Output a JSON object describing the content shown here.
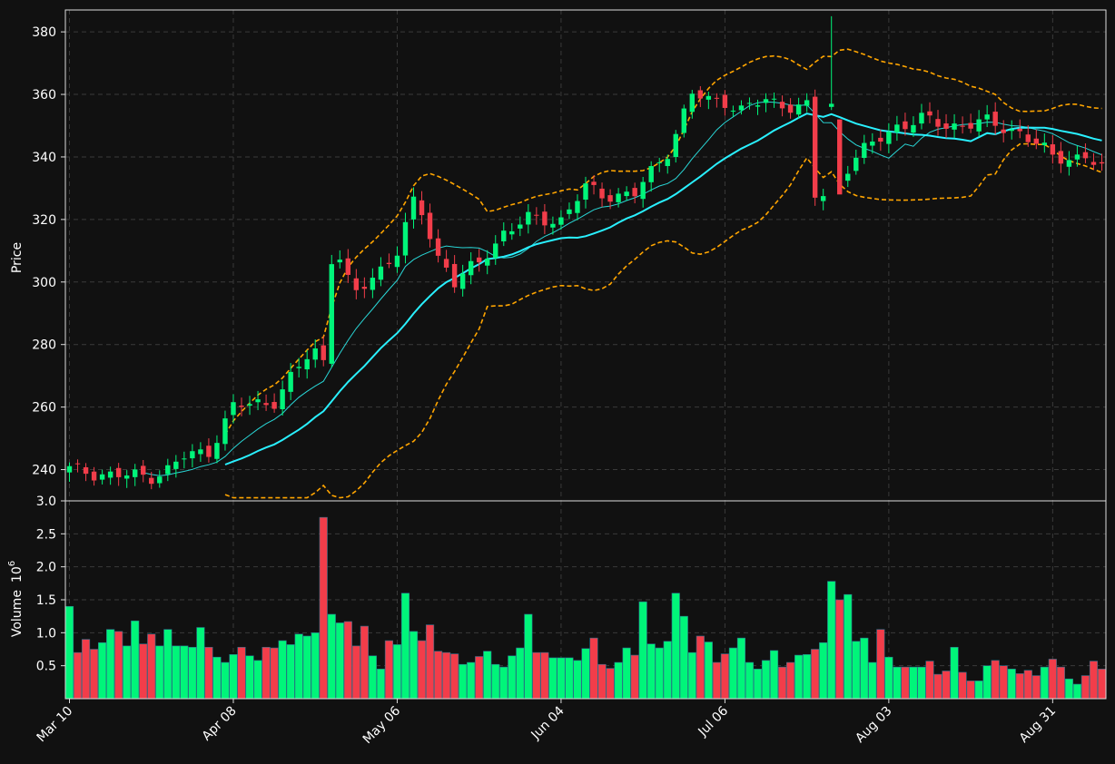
{
  "chart_data": {
    "type": "candlestick",
    "colors": {
      "background": "#111111",
      "up": "#00f57a",
      "down": "#f23d4a",
      "ma_slow": "#29f0ff",
      "ma_fast": "#29d6d6",
      "bands": "#ffa500",
      "grid": "#3a3a3a",
      "frame": "#dddddd",
      "text": "#ffffff"
    },
    "x_ticks": [
      "Mar 10",
      "Apr 08",
      "May 06",
      "Jun 04",
      "Jul 06",
      "Aug 03",
      "Aug 31"
    ],
    "x_tick_index": [
      0,
      20,
      40,
      60,
      80,
      100,
      120
    ],
    "n_bars": 127,
    "price_axis": {
      "label": "Price",
      "ylim": [
        230,
        387
      ],
      "ticks": [
        "240",
        "260",
        "280",
        "300",
        "320",
        "340",
        "360",
        "380"
      ]
    },
    "volume_axis": {
      "label": "Volume",
      "exponent": "6",
      "ylim": [
        0,
        3.0
      ],
      "ticks": [
        "0.5",
        "1.0",
        "1.5",
        "2.0",
        "2.5",
        "3.0"
      ]
    },
    "anchors": [
      [
        0,
        240
      ],
      [
        6,
        238
      ],
      [
        10,
        238
      ],
      [
        12,
        240
      ],
      [
        14,
        244
      ],
      [
        17,
        246
      ],
      [
        20,
        260
      ],
      [
        25,
        262
      ],
      [
        29,
        276
      ],
      [
        30,
        278
      ],
      [
        31,
        275
      ],
      [
        32,
        308
      ],
      [
        33,
        308
      ],
      [
        34,
        300
      ],
      [
        35,
        296
      ],
      [
        40,
        310
      ],
      [
        42,
        325
      ],
      [
        43,
        322
      ],
      [
        45,
        308
      ],
      [
        46,
        305
      ],
      [
        47,
        300
      ],
      [
        50,
        306
      ],
      [
        53,
        316
      ],
      [
        56,
        320
      ],
      [
        60,
        320
      ],
      [
        63,
        330
      ],
      [
        65,
        328
      ],
      [
        69,
        328
      ],
      [
        73,
        342
      ],
      [
        76,
        360
      ],
      [
        78,
        358
      ],
      [
        80,
        358
      ],
      [
        82,
        355
      ],
      [
        85,
        358
      ],
      [
        89,
        356
      ],
      [
        90,
        356
      ],
      [
        91,
        327
      ],
      [
        92,
        328
      ],
      [
        96,
        340
      ],
      [
        101,
        350
      ],
      [
        104,
        352
      ],
      [
        107,
        350
      ],
      [
        112,
        351
      ],
      [
        116,
        348
      ],
      [
        120,
        340
      ],
      [
        124,
        340
      ],
      [
        126,
        336
      ]
    ],
    "ma_slow_start": 19,
    "ma_fast_start": 9,
    "band_start": 19,
    "volumes": [
      1.4,
      0.7,
      0.9,
      0.75,
      0.85,
      1.05,
      1.02,
      0.8,
      1.18,
      0.83,
      0.98,
      0.8,
      1.05,
      0.8,
      0.8,
      0.78,
      1.08,
      0.78,
      0.63,
      0.55,
      0.67,
      0.78,
      0.65,
      0.58,
      0.78,
      0.77,
      0.88,
      0.82,
      0.98,
      0.95,
      1.0,
      2.75,
      1.28,
      1.15,
      1.17,
      0.8,
      1.1,
      0.65,
      0.45,
      0.88,
      0.82,
      1.6,
      1.02,
      0.88,
      1.12,
      0.72,
      0.7,
      0.68,
      0.52,
      0.55,
      0.64,
      0.72,
      0.52,
      0.48,
      0.65,
      0.77,
      1.28,
      0.7,
      0.7,
      0.62,
      0.62,
      0.62,
      0.58,
      0.76,
      0.92,
      0.52,
      0.46,
      0.55,
      0.77,
      0.66,
      1.47,
      0.83,
      0.77,
      0.87,
      1.6,
      1.25,
      0.7,
      0.95,
      0.86,
      0.55,
      0.68,
      0.77,
      0.92,
      0.55,
      0.45,
      0.58,
      0.73,
      0.48,
      0.55,
      0.66,
      0.67,
      0.75,
      0.85,
      1.78,
      1.5,
      1.58,
      0.87,
      0.92,
      0.55,
      1.05,
      0.63,
      0.48,
      0.48,
      0.48,
      0.48,
      0.57,
      0.37,
      0.42,
      0.78,
      0.4,
      0.27,
      0.27,
      0.5,
      0.58,
      0.5,
      0.45,
      0.38,
      0.43,
      0.35,
      0.48,
      0.6,
      0.48,
      0.3,
      0.22,
      0.35,
      0.57,
      0.45
    ]
  }
}
